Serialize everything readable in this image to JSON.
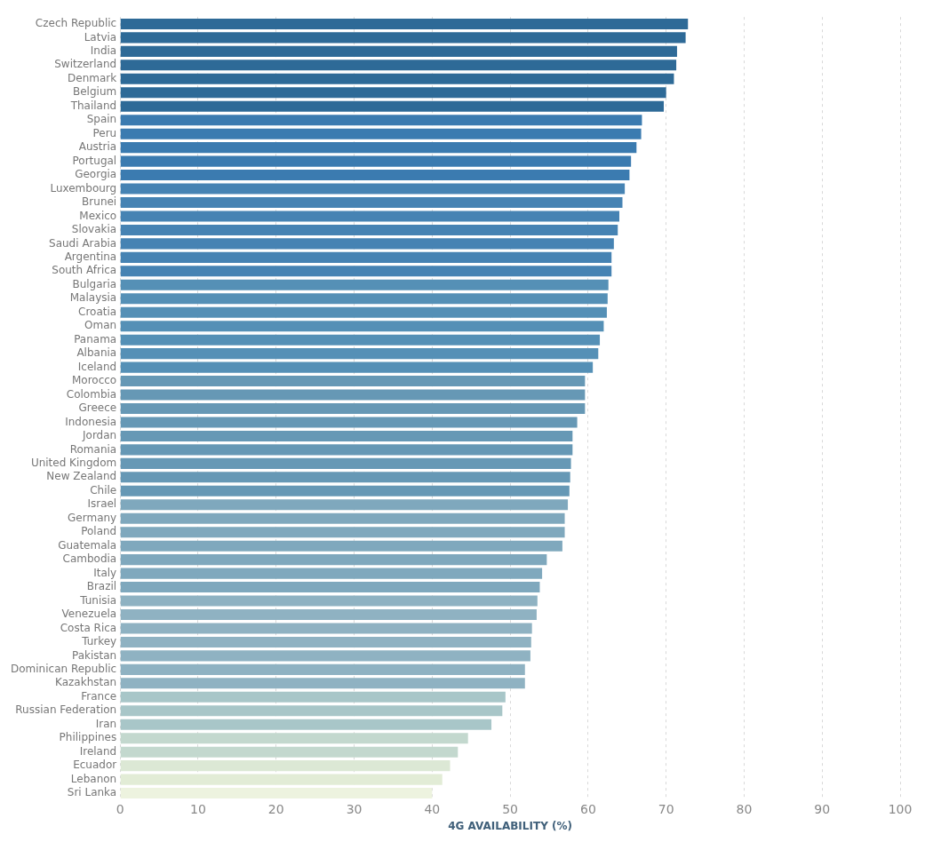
{
  "chart_data": {
    "type": "bar",
    "orientation": "horizontal",
    "xlabel": "4G AVAILABILITY (%)",
    "categories": [
      "Czech Republic",
      "Latvia",
      "India",
      "Switzerland",
      "Denmark",
      "Belgium",
      "Thailand",
      "Spain",
      "Peru",
      "Austria",
      "Portugal",
      "Georgia",
      "Luxembourg",
      "Brunei",
      "Mexico",
      "Slovakia",
      "Saudi Arabia",
      "Argentina",
      "South Africa",
      "Bulgaria",
      "Malaysia",
      "Croatia",
      "Oman",
      "Panama",
      "Albania",
      "Iceland",
      "Morocco",
      "Colombia",
      "Greece",
      "Indonesia",
      "Jordan",
      "Romania",
      "United Kingdom",
      "New Zealand",
      "Chile",
      "Israel",
      "Germany",
      "Poland",
      "Guatemala",
      "Cambodia",
      "Italy",
      "Brazil",
      "Tunisia",
      "Venezuela",
      "Costa Rica",
      "Turkey",
      "Pakistan",
      "Dominican Republic",
      "Kazakhstan",
      "France",
      "Russian Federation",
      "Iran",
      "Philippines",
      "Ireland",
      "Ecuador",
      "Lebanon",
      "Sri Lanka"
    ],
    "values": [
      72.8,
      72.5,
      71.4,
      71.3,
      71.0,
      70.0,
      69.7,
      66.9,
      66.8,
      66.2,
      65.5,
      65.3,
      64.7,
      64.4,
      64.0,
      63.8,
      63.3,
      63.0,
      63.0,
      62.6,
      62.5,
      62.4,
      62.0,
      61.5,
      61.3,
      60.6,
      59.6,
      59.6,
      59.6,
      58.6,
      58.0,
      58.0,
      57.8,
      57.7,
      57.6,
      57.4,
      57.0,
      57.0,
      56.7,
      54.7,
      54.1,
      53.8,
      53.5,
      53.4,
      52.8,
      52.7,
      52.6,
      51.9,
      51.9,
      49.4,
      49.0,
      47.6,
      44.6,
      43.3,
      42.3,
      41.3,
      40.0
    ],
    "colors": [
      "#2e6a97",
      "#2e6a97",
      "#2e6a97",
      "#2e6a97",
      "#2e6a97",
      "#2e6a97",
      "#2e6a97",
      "#3b7bb0",
      "#3b7bb0",
      "#3b7bb0",
      "#3b7bb0",
      "#3b7bb0",
      "#4683b3",
      "#4683b3",
      "#4683b3",
      "#4683b3",
      "#4683b3",
      "#4683b3",
      "#4683b3",
      "#5590b6",
      "#5590b6",
      "#5590b6",
      "#5590b6",
      "#5590b6",
      "#5590b6",
      "#5590b6",
      "#6698b5",
      "#6698b5",
      "#6698b5",
      "#6698b5",
      "#6698b5",
      "#6698b5",
      "#6698b5",
      "#6698b5",
      "#6698b5",
      "#7fa8bd",
      "#7fa8bd",
      "#7fa8bd",
      "#7fa8bd",
      "#7fa8bd",
      "#7fa8bd",
      "#7fa8bd",
      "#8fb2c2",
      "#8fb2c2",
      "#8fb2c2",
      "#8fb2c2",
      "#8fb2c2",
      "#8fb2c2",
      "#8fb2c2",
      "#a8c6c8",
      "#a8c6c8",
      "#a8c6c8",
      "#c3d8ce",
      "#c3d8ce",
      "#dce8d5",
      "#e2ecd6",
      "#edf3df"
    ],
    "xlim": [
      0,
      100
    ],
    "xticks": [
      0,
      10,
      20,
      30,
      40,
      50,
      60,
      70,
      80,
      90,
      100
    ],
    "grid": "x"
  }
}
